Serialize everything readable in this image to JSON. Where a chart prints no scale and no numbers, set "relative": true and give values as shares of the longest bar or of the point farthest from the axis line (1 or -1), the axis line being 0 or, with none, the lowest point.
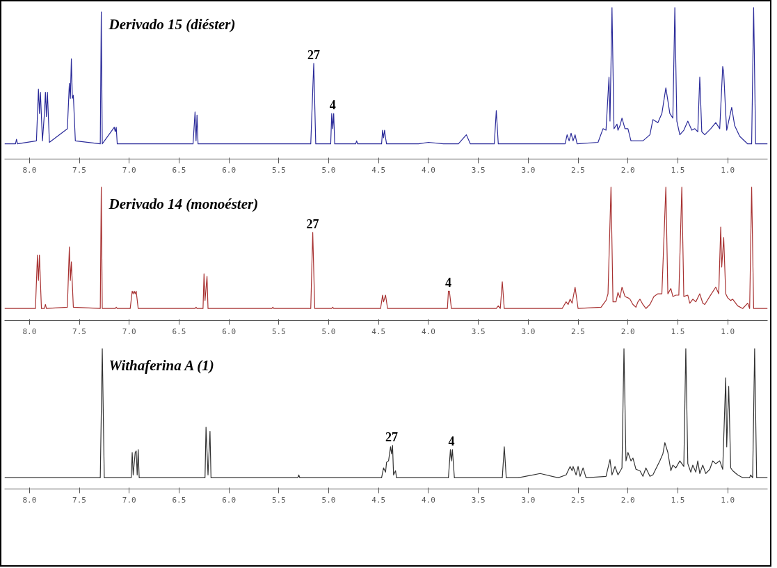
{
  "chart_data": [
    {
      "type": "line",
      "title": "Derivado  15 (diéster)",
      "relative": true,
      "grid": false,
      "xlim": [
        8.25,
        0.6
      ],
      "xticks": [
        {
          "value": 8,
          "label": "8.0"
        },
        {
          "value": 7.5,
          "label": "7.5"
        },
        {
          "value": 7,
          "label": "7.0"
        },
        {
          "value": 6.5,
          "label": "6.5"
        },
        {
          "value": 6,
          "label": "6.0"
        },
        {
          "value": 5.5,
          "label": "5.5"
        },
        {
          "value": 5,
          "label": "5.0"
        },
        {
          "value": 4.5,
          "label": "4.5"
        },
        {
          "value": 4,
          "label": "4.0"
        },
        {
          "value": 3.5,
          "label": "3.5"
        },
        {
          "value": 3,
          "label": "3.0"
        },
        {
          "value": 2.5,
          "label": "2.5"
        },
        {
          "value": 2,
          "label": "2.0"
        },
        {
          "value": 1.5,
          "label": "1.5"
        },
        {
          "value": 1,
          "label": "1.0"
        }
      ],
      "annotations": [
        {
          "text": "27",
          "x": 5.15,
          "y": 0.63
        },
        {
          "text": "4",
          "x": 4.96,
          "y": 0.3
        }
      ],
      "series": [
        {
          "color": "#2b2b9a",
          "x": [
            8.25,
            8.14,
            8.13,
            8.12,
            7.93,
            7.91,
            7.9,
            7.89,
            7.87,
            7.85,
            7.84,
            7.83,
            7.82,
            7.8,
            7.62,
            7.6,
            7.59,
            7.58,
            7.57,
            7.56,
            7.54,
            7.29,
            7.28,
            7.27,
            7.16,
            7.15,
            7.14,
            7.13,
            7.12,
            6.36,
            6.34,
            6.33,
            6.32,
            6.31,
            5.18,
            5.15,
            5.13,
            4.98,
            4.97,
            4.96,
            4.95,
            4.94,
            4.73,
            4.72,
            4.71,
            4.47,
            4.46,
            4.45,
            4.44,
            4.43,
            4.42,
            4.1,
            4.0,
            3.85,
            3.7,
            3.66,
            3.62,
            3.58,
            3.34,
            3.32,
            3.3,
            2.63,
            2.61,
            2.59,
            2.57,
            2.55,
            2.53,
            2.51,
            2.3,
            2.25,
            2.22,
            2.19,
            2.18,
            2.16,
            2.14,
            2.11,
            2.1,
            2.08,
            2.06,
            2.03,
            2.0,
            1.97,
            1.85,
            1.78,
            1.75,
            1.7,
            1.66,
            1.62,
            1.58,
            1.55,
            1.53,
            1.51,
            1.48,
            1.44,
            1.4,
            1.36,
            1.33,
            1.3,
            1.28,
            1.26,
            1.23,
            1.17,
            1.12,
            1.08,
            1.05,
            1.04,
            1.02,
            1.01,
            0.99,
            0.96,
            0.93,
            0.88,
            0.8,
            0.76,
            0.74,
            0.72,
            0.68,
            0.6
          ],
          "values": [
            0.1,
            0.1,
            0.13,
            0.1,
            0.12,
            0.46,
            0.3,
            0.44,
            0.12,
            0.3,
            0.44,
            0.28,
            0.44,
            0.11,
            0.2,
            0.5,
            0.4,
            0.66,
            0.4,
            0.42,
            0.12,
            0.1,
            0.97,
            0.1,
            0.2,
            0.21,
            0.18,
            0.21,
            0.1,
            0.1,
            0.31,
            0.12,
            0.29,
            0.1,
            0.1,
            0.63,
            0.1,
            0.1,
            0.3,
            0.2,
            0.3,
            0.1,
            0.1,
            0.12,
            0.1,
            0.1,
            0.19,
            0.14,
            0.19,
            0.14,
            0.1,
            0.1,
            0.11,
            0.1,
            0.1,
            0.13,
            0.16,
            0.1,
            0.1,
            0.32,
            0.1,
            0.1,
            0.16,
            0.12,
            0.17,
            0.12,
            0.16,
            0.1,
            0.11,
            0.2,
            0.19,
            0.54,
            0.25,
            1.0,
            0.2,
            0.23,
            0.19,
            0.22,
            0.27,
            0.2,
            0.2,
            0.12,
            0.12,
            0.16,
            0.26,
            0.24,
            0.3,
            0.47,
            0.3,
            0.27,
            1.0,
            0.25,
            0.16,
            0.19,
            0.25,
            0.19,
            0.2,
            0.18,
            0.54,
            0.18,
            0.16,
            0.2,
            0.24,
            0.2,
            0.61,
            0.57,
            0.3,
            0.19,
            0.25,
            0.34,
            0.22,
            0.15,
            0.1,
            0.1,
            1.0,
            0.1,
            0.1,
            0.1
          ]
        }
      ]
    },
    {
      "type": "line",
      "title": "Derivado 14 (monoéster)",
      "relative": true,
      "grid": false,
      "xlim": [
        8.25,
        0.6
      ],
      "xticks": [
        {
          "value": 8,
          "label": "8.0"
        },
        {
          "value": 7.5,
          "label": "7.5"
        },
        {
          "value": 7,
          "label": "7.0"
        },
        {
          "value": 6.5,
          "label": "6.5"
        },
        {
          "value": 6,
          "label": "6.0"
        },
        {
          "value": 5.5,
          "label": "5.5"
        },
        {
          "value": 5,
          "label": "5.0"
        },
        {
          "value": 4.5,
          "label": "4.5"
        },
        {
          "value": 4,
          "label": "4.0"
        },
        {
          "value": 3.5,
          "label": "3.5"
        },
        {
          "value": 3,
          "label": "3.0"
        },
        {
          "value": 2.5,
          "label": "2.5"
        },
        {
          "value": 2,
          "label": "2.0"
        },
        {
          "value": 1.5,
          "label": "1.5"
        },
        {
          "value": 1,
          "label": "1.0"
        }
      ],
      "annotations": [
        {
          "text": "27",
          "x": 5.16,
          "y": 0.66
        },
        {
          "text": "4",
          "x": 3.8,
          "y": 0.22
        }
      ],
      "series": [
        {
          "color": "#a83232",
          "x": [
            8.25,
            7.94,
            7.92,
            7.91,
            7.9,
            7.88,
            7.85,
            7.84,
            7.83,
            7.62,
            7.6,
            7.59,
            7.58,
            7.56,
            7.29,
            7.28,
            7.27,
            7.14,
            7.13,
            7.12,
            6.99,
            6.97,
            6.96,
            6.95,
            6.94,
            6.93,
            6.91,
            6.34,
            6.33,
            6.32,
            6.26,
            6.25,
            6.24,
            6.22,
            6.21,
            5.57,
            5.56,
            5.55,
            5.18,
            5.16,
            5.14,
            4.97,
            4.96,
            4.95,
            4.48,
            4.46,
            4.45,
            4.43,
            4.41,
            3.81,
            3.8,
            3.79,
            3.77,
            3.32,
            3.3,
            3.28,
            3.26,
            3.24,
            2.66,
            2.62,
            2.6,
            2.58,
            2.56,
            2.53,
            2.5,
            2.27,
            2.22,
            2.2,
            2.17,
            2.15,
            2.12,
            2.1,
            2.08,
            2.06,
            2.03,
            2.0,
            1.98,
            1.95,
            1.92,
            1.9,
            1.88,
            1.85,
            1.82,
            1.78,
            1.74,
            1.7,
            1.66,
            1.62,
            1.6,
            1.57,
            1.55,
            1.52,
            1.49,
            1.46,
            1.44,
            1.4,
            1.38,
            1.35,
            1.32,
            1.28,
            1.25,
            1.23,
            1.18,
            1.12,
            1.09,
            1.07,
            1.06,
            1.04,
            1.02,
            1.0,
            0.97,
            0.95,
            0.9,
            0.85,
            0.8,
            0.78,
            0.76,
            0.74,
            0.6
          ],
          "values": [
            0.09,
            0.09,
            0.49,
            0.3,
            0.49,
            0.09,
            0.09,
            0.12,
            0.09,
            0.1,
            0.55,
            0.3,
            0.44,
            0.1,
            0.09,
            1.0,
            0.09,
            0.09,
            0.1,
            0.09,
            0.09,
            0.22,
            0.2,
            0.22,
            0.2,
            0.22,
            0.09,
            0.09,
            0.1,
            0.09,
            0.09,
            0.35,
            0.15,
            0.33,
            0.09,
            0.09,
            0.1,
            0.09,
            0.09,
            0.66,
            0.09,
            0.09,
            0.1,
            0.09,
            0.09,
            0.19,
            0.14,
            0.19,
            0.09,
            0.09,
            0.22,
            0.22,
            0.09,
            0.09,
            0.11,
            0.09,
            0.29,
            0.09,
            0.09,
            0.14,
            0.12,
            0.16,
            0.13,
            0.25,
            0.09,
            0.1,
            0.15,
            0.2,
            1.0,
            0.14,
            0.14,
            0.21,
            0.17,
            0.25,
            0.18,
            0.17,
            0.16,
            0.12,
            0.1,
            0.14,
            0.16,
            0.12,
            0.09,
            0.12,
            0.18,
            0.2,
            0.2,
            1.0,
            0.2,
            0.24,
            0.18,
            0.19,
            0.19,
            1.0,
            0.18,
            0.19,
            0.13,
            0.16,
            0.14,
            0.2,
            0.13,
            0.12,
            0.18,
            0.25,
            0.2,
            0.7,
            0.4,
            0.62,
            0.2,
            0.17,
            0.15,
            0.16,
            0.11,
            0.09,
            0.13,
            0.09,
            1.0,
            0.09,
            0.09
          ]
        }
      ]
    },
    {
      "type": "line",
      "title": "Withaferina A (1)",
      "relative": true,
      "grid": false,
      "xlim": [
        8.25,
        0.6
      ],
      "xticks": [
        {
          "value": 8,
          "label": "8.0"
        },
        {
          "value": 7.5,
          "label": "7.5"
        },
        {
          "value": 7,
          "label": "7.0"
        },
        {
          "value": 6.5,
          "label": "6.5"
        },
        {
          "value": 6,
          "label": "6.0"
        },
        {
          "value": 5.5,
          "label": "5.5"
        },
        {
          "value": 5,
          "label": "5.0"
        },
        {
          "value": 4.5,
          "label": "4.5"
        },
        {
          "value": 4,
          "label": "4.0"
        },
        {
          "value": 3.5,
          "label": "3.5"
        },
        {
          "value": 3,
          "label": "3.0"
        },
        {
          "value": 2.5,
          "label": "2.5"
        },
        {
          "value": 2,
          "label": "2.0"
        },
        {
          "value": 1.5,
          "label": "1.5"
        },
        {
          "value": 1,
          "label": "1.0"
        }
      ],
      "annotations": [
        {
          "text": "27",
          "x": 4.37,
          "y": 0.31
        },
        {
          "text": "4",
          "x": 3.77,
          "y": 0.28
        }
      ],
      "series": [
        {
          "color": "#333333",
          "x": [
            8.25,
            7.29,
            7.27,
            7.25,
            6.98,
            6.97,
            6.96,
            6.94,
            6.93,
            6.92,
            6.91,
            6.9,
            6.24,
            6.23,
            6.21,
            6.19,
            6.18,
            5.31,
            5.3,
            5.29,
            4.47,
            4.45,
            4.43,
            4.42,
            4.4,
            4.38,
            4.37,
            4.36,
            4.35,
            4.33,
            4.32,
            3.8,
            3.78,
            3.77,
            3.76,
            3.74,
            3.26,
            3.24,
            3.22,
            3.1,
            2.88,
            2.7,
            2.62,
            2.58,
            2.56,
            2.55,
            2.52,
            2.5,
            2.48,
            2.45,
            2.42,
            2.22,
            2.18,
            2.16,
            2.13,
            2.1,
            2.06,
            2.04,
            2.02,
            2.0,
            1.97,
            1.95,
            1.92,
            1.88,
            1.85,
            1.82,
            1.78,
            1.75,
            1.68,
            1.65,
            1.63,
            1.6,
            1.57,
            1.55,
            1.52,
            1.48,
            1.44,
            1.42,
            1.4,
            1.37,
            1.35,
            1.32,
            1.3,
            1.28,
            1.25,
            1.22,
            1.18,
            1.15,
            1.12,
            1.08,
            1.05,
            1.02,
            1.01,
            0.99,
            0.97,
            0.95,
            0.9,
            0.85,
            0.78,
            0.77,
            0.75,
            0.73,
            0.71,
            0.6
          ],
          "values": [
            0.08,
            0.08,
            1.0,
            0.08,
            0.08,
            0.26,
            0.1,
            0.26,
            0.27,
            0.1,
            0.28,
            0.08,
            0.08,
            0.44,
            0.1,
            0.41,
            0.08,
            0.08,
            0.1,
            0.08,
            0.08,
            0.15,
            0.12,
            0.19,
            0.2,
            0.3,
            0.25,
            0.31,
            0.1,
            0.13,
            0.08,
            0.08,
            0.28,
            0.2,
            0.28,
            0.08,
            0.08,
            0.3,
            0.08,
            0.08,
            0.11,
            0.08,
            0.1,
            0.16,
            0.13,
            0.16,
            0.1,
            0.16,
            0.09,
            0.15,
            0.08,
            0.09,
            0.21,
            0.1,
            0.16,
            0.1,
            0.15,
            1.0,
            0.2,
            0.26,
            0.2,
            0.22,
            0.14,
            0.13,
            0.09,
            0.15,
            0.09,
            0.1,
            0.2,
            0.25,
            0.33,
            0.26,
            0.13,
            0.17,
            0.15,
            0.2,
            0.16,
            1.0,
            0.18,
            0.12,
            0.17,
            0.12,
            0.2,
            0.11,
            0.17,
            0.11,
            0.14,
            0.2,
            0.18,
            0.2,
            0.14,
            0.79,
            0.3,
            0.73,
            0.15,
            0.13,
            0.1,
            0.08,
            0.08,
            0.1,
            0.08,
            1.0,
            0.08,
            0.08
          ]
        }
      ]
    }
  ]
}
